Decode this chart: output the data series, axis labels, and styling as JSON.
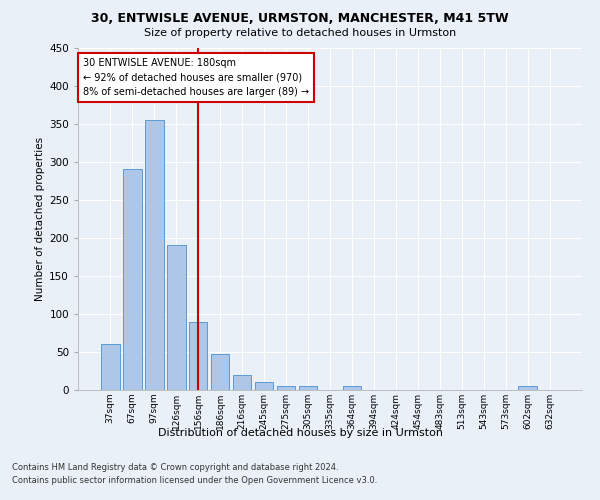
{
  "title1": "30, ENTWISLE AVENUE, URMSTON, MANCHESTER, M41 5TW",
  "title2": "Size of property relative to detached houses in Urmston",
  "xlabel": "Distribution of detached houses by size in Urmston",
  "ylabel": "Number of detached properties",
  "categories": [
    "37sqm",
    "67sqm",
    "97sqm",
    "126sqm",
    "156sqm",
    "186sqm",
    "216sqm",
    "245sqm",
    "275sqm",
    "305sqm",
    "335sqm",
    "364sqm",
    "394sqm",
    "424sqm",
    "454sqm",
    "483sqm",
    "513sqm",
    "543sqm",
    "573sqm",
    "602sqm",
    "632sqm"
  ],
  "values": [
    60,
    290,
    355,
    190,
    90,
    47,
    20,
    10,
    5,
    5,
    0,
    5,
    0,
    0,
    0,
    0,
    0,
    0,
    0,
    5,
    0
  ],
  "bar_color": "#aec6e8",
  "bar_edge_color": "#5b9bd5",
  "vline_index": 4.5,
  "vline_color": "#cc0000",
  "annotation_line1": "30 ENTWISLE AVENUE: 180sqm",
  "annotation_line2": "← 92% of detached houses are smaller (970)",
  "annotation_line3": "8% of semi-detached houses are larger (89) →",
  "annotation_box_color": "#cc0000",
  "ylim": [
    0,
    450
  ],
  "yticks": [
    0,
    50,
    100,
    150,
    200,
    250,
    300,
    350,
    400,
    450
  ],
  "footnote1": "Contains HM Land Registry data © Crown copyright and database right 2024.",
  "footnote2": "Contains public sector information licensed under the Open Government Licence v3.0.",
  "bg_color": "#eaf0f7",
  "grid_color": "#ffffff"
}
